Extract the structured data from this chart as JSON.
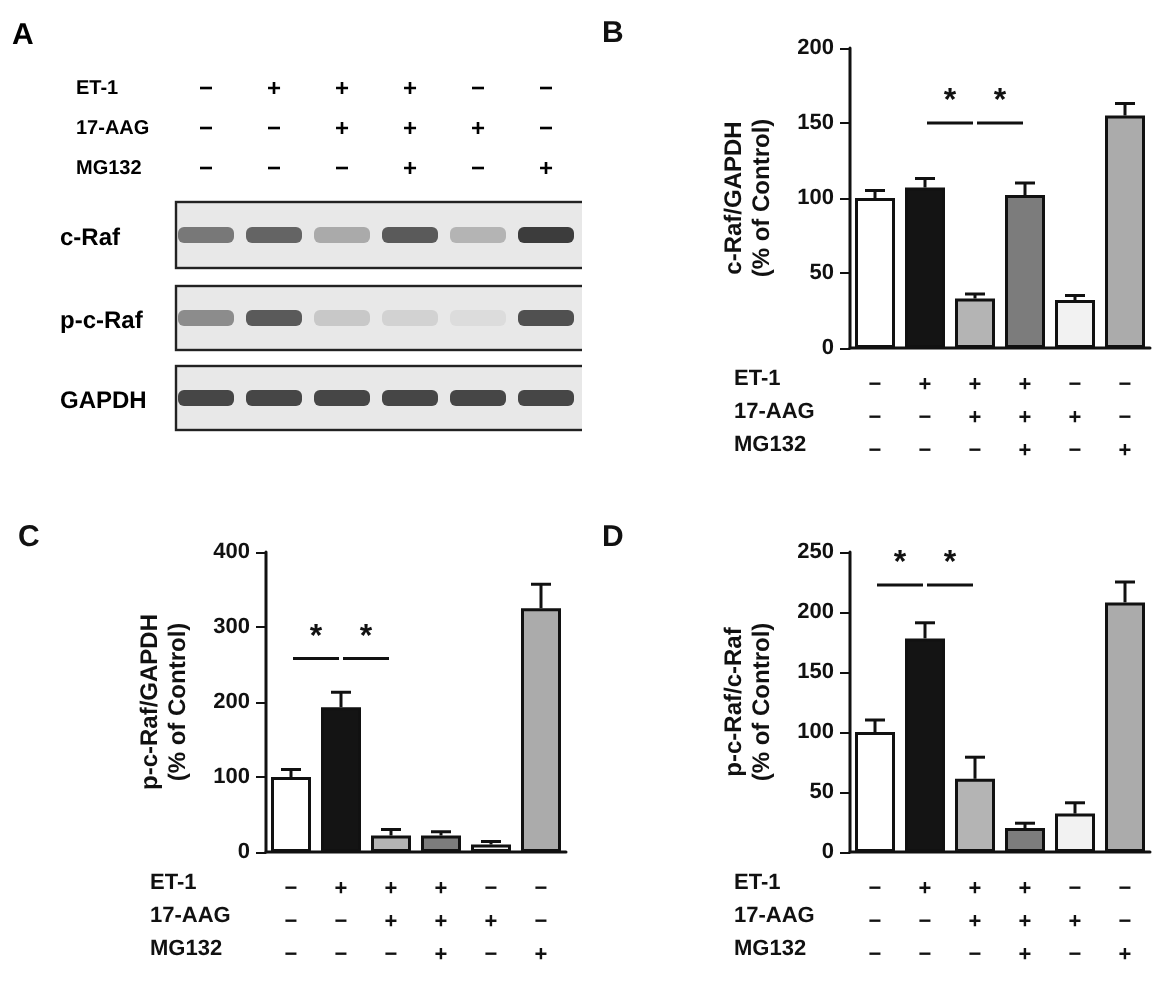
{
  "chart_data": [
    {
      "type": "other",
      "title": "A",
      "categories": [
        "−\n−\n−",
        "+\n−\n−",
        "+\n+\n−",
        "+\n+\n+",
        "−\n+\n−",
        "−\n−\n+"
      ],
      "annotations": [
        "ET-1",
        "17-AAG",
        "MG132",
        "c-Raf",
        "p-c-Raf",
        "GAPDH"
      ]
    },
    {
      "type": "bar",
      "title": "B",
      "ylabel": "c-Raf/GAPDH\n(% of Control)",
      "categories": [
        "−\n−\n−",
        "+\n−\n−",
        "+\n+\n−",
        "+\n+\n+",
        "−\n+\n−",
        "−\n−\n+"
      ],
      "values": [
        100,
        107,
        33,
        102,
        32,
        155
      ],
      "errors": [
        5,
        6,
        3,
        8,
        3,
        8
      ],
      "colors": [
        "#ffffff",
        "#141414",
        "#b4b4b4",
        "#7c7c7c",
        "#f2f2f2",
        "#ababab"
      ],
      "ylim": [
        0,
        200
      ],
      "yticks": [
        0,
        50,
        100,
        150,
        200
      ],
      "grid": false,
      "annotations": [
        "ET-1",
        "17-AAG",
        "MG132",
        "*",
        "*"
      ]
    },
    {
      "type": "bar",
      "title": "C",
      "ylabel": "p-c-Raf/GAPDH\n(% of Control)",
      "categories": [
        "−\n−\n−",
        "+\n−\n−",
        "+\n+\n−",
        "+\n+\n+",
        "−\n+\n−",
        "−\n−\n+"
      ],
      "values": [
        100,
        193,
        22,
        22,
        10,
        325
      ],
      "errors": [
        10,
        20,
        8,
        5,
        4,
        32
      ],
      "colors": [
        "#ffffff",
        "#141414",
        "#b4b4b4",
        "#7c7c7c",
        "#f2f2f2",
        "#ababab"
      ],
      "ylim": [
        0,
        400
      ],
      "yticks": [
        0,
        100,
        200,
        300,
        400
      ],
      "grid": false,
      "annotations": [
        "ET-1",
        "17-AAG",
        "MG132",
        "*",
        "*"
      ]
    },
    {
      "type": "bar",
      "title": "D",
      "ylabel": "p-c-Raf/c-Raf\n(% of Control)",
      "categories": [
        "−\n−\n−",
        "+\n−\n−",
        "+\n+\n−",
        "+\n+\n+",
        "−\n+\n−",
        "−\n−\n+"
      ],
      "values": [
        100,
        178,
        61,
        20,
        32,
        208
      ],
      "errors": [
        10,
        13,
        18,
        4,
        9,
        17
      ],
      "colors": [
        "#ffffff",
        "#141414",
        "#b4b4b4",
        "#7c7c7c",
        "#f2f2f2",
        "#ababab"
      ],
      "ylim": [
        0,
        250
      ],
      "yticks": [
        0,
        50,
        100,
        150,
        200,
        250
      ],
      "grid": false,
      "annotations": [
        "ET-1",
        "17-AAG",
        "MG132",
        "*",
        "*"
      ]
    }
  ]
}
